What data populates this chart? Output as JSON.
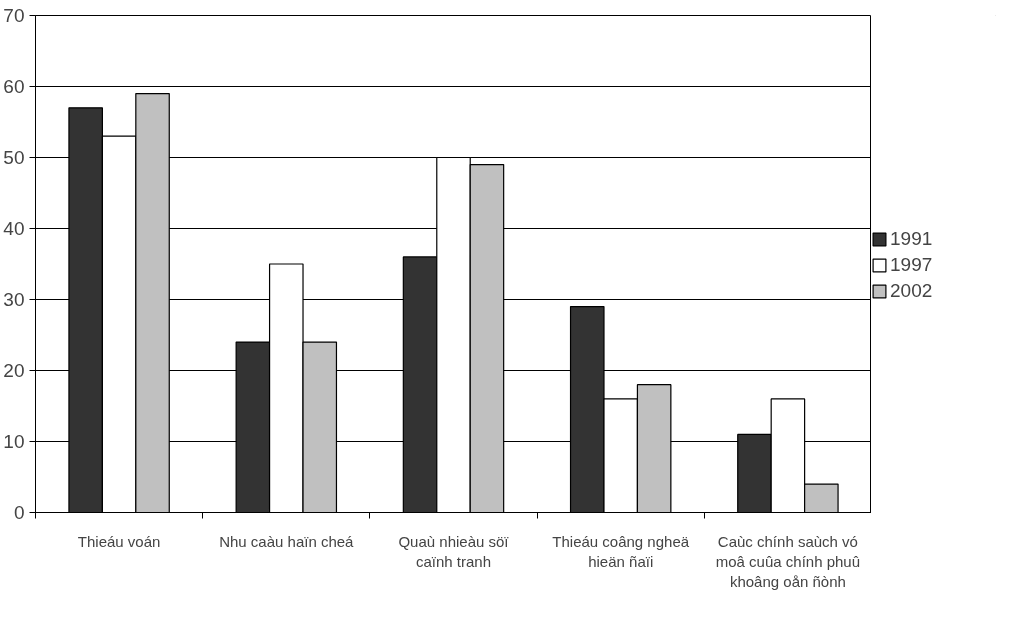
{
  "chart_data": {
    "type": "bar",
    "categories": [
      "Thieáu voán",
      "Nhu caàu haïn cheá",
      "Quaù nhieàu söï\ncaïnh tranh",
      "Thieáu coâng ngheä\nhieän ñaïi",
      "Caùc chính saùch vó\nmoâ cuûa chính phuû\nkhoâng oån ñònh"
    ],
    "series": [
      {
        "name": "1991",
        "color": "#333333",
        "values": [
          57,
          24,
          36,
          29,
          11
        ]
      },
      {
        "name": "1997",
        "color": "#ffffff",
        "values": [
          53,
          35,
          50,
          16,
          16
        ]
      },
      {
        "name": "2002",
        "color": "#c0c0c0",
        "values": [
          59,
          24,
          49,
          18,
          4
        ]
      }
    ],
    "ylim": [
      0,
      70
    ],
    "yticks": [
      0,
      10,
      20,
      30,
      40,
      50,
      60,
      70
    ],
    "grid": "y",
    "legend": "right"
  }
}
